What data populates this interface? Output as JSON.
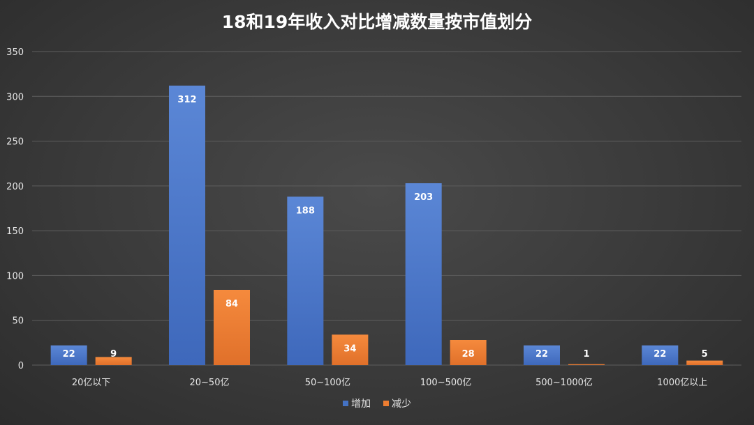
{
  "chart_data": {
    "type": "bar",
    "title": "18和19年收入对比增减数量按市值划分",
    "categories": [
      "20亿以下",
      "20~50亿",
      "50~100亿",
      "100~500亿",
      "500~1000亿",
      "1000亿以上"
    ],
    "series": [
      {
        "name": "增加",
        "values": [
          22,
          312,
          188,
          203,
          22,
          22
        ],
        "color": "#4472c4"
      },
      {
        "name": "减少",
        "values": [
          9,
          84,
          34,
          28,
          1,
          5
        ],
        "color": "#ed7d31"
      }
    ],
    "ylim": [
      0,
      350
    ],
    "yticks": [
      0,
      50,
      100,
      150,
      200,
      250,
      300,
      350
    ],
    "grid": true,
    "legend_position": "bottom"
  }
}
